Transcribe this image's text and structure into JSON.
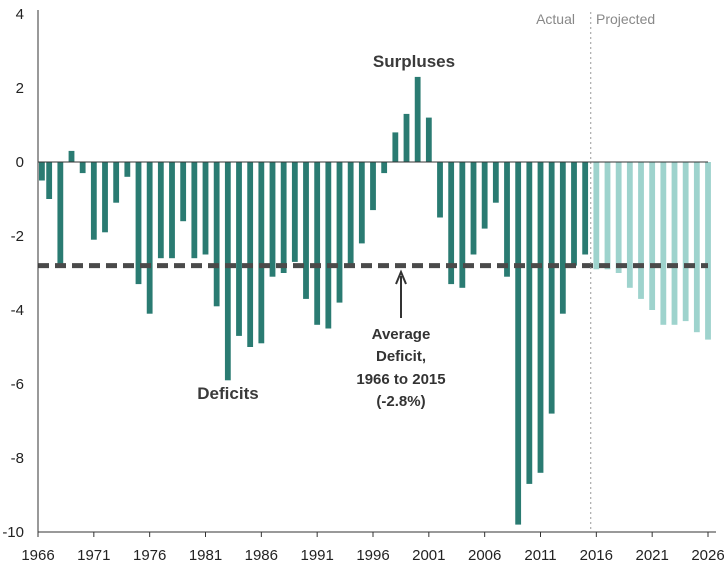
{
  "chart_data": {
    "type": "bar",
    "x": [
      1966,
      1967,
      1968,
      1969,
      1970,
      1971,
      1972,
      1973,
      1974,
      1975,
      1976,
      1977,
      1978,
      1979,
      1980,
      1981,
      1982,
      1983,
      1984,
      1985,
      1986,
      1987,
      1988,
      1989,
      1990,
      1991,
      1992,
      1993,
      1994,
      1995,
      1996,
      1997,
      1998,
      1999,
      2000,
      2001,
      2002,
      2003,
      2004,
      2005,
      2006,
      2007,
      2008,
      2009,
      2010,
      2011,
      2012,
      2013,
      2014,
      2015,
      2016,
      2017,
      2018,
      2019,
      2020,
      2021,
      2022,
      2023,
      2024,
      2025,
      2026
    ],
    "values": [
      -0.5,
      -1.0,
      -2.8,
      0.3,
      -0.3,
      -2.1,
      -1.9,
      -1.1,
      -0.4,
      -3.3,
      -4.1,
      -2.6,
      -2.6,
      -1.6,
      -2.6,
      -2.5,
      -3.9,
      -5.9,
      -4.7,
      -5.0,
      -4.9,
      -3.1,
      -3.0,
      -2.7,
      -3.7,
      -4.4,
      -4.5,
      -3.8,
      -2.8,
      -2.2,
      -1.3,
      -0.3,
      0.8,
      1.3,
      2.3,
      1.2,
      -1.5,
      -3.3,
      -3.4,
      -2.5,
      -1.8,
      -1.1,
      -3.1,
      -9.8,
      -8.7,
      -8.4,
      -6.8,
      -4.1,
      -2.8,
      -2.5,
      -2.9,
      -2.9,
      -3.0,
      -3.4,
      -3.7,
      -4.0,
      -4.4,
      -4.4,
      -4.3,
      -4.6,
      -4.8
    ],
    "projected_from": 2016,
    "xticks": [
      "1966",
      "1971",
      "1976",
      "1981",
      "1986",
      "1991",
      "1996",
      "2001",
      "2006",
      "2011",
      "2016",
      "2021",
      "2026"
    ],
    "yticks": [
      "4",
      "2",
      "0",
      "-2",
      "-4",
      "-6",
      "-8",
      "-10"
    ],
    "ylim": [
      -10,
      4
    ],
    "average": -2.8,
    "annotations": {
      "surpluses": "Surpluses",
      "deficits": "Deficits",
      "average_lines": [
        "Average",
        "Deficit,",
        "1966 to 2015",
        "(-2.8%)"
      ]
    },
    "regions": {
      "actual": "Actual",
      "projected": "Projected"
    },
    "colors": {
      "actual": "#2a7b72",
      "projected": "#9ed3cd",
      "average_line": "#4a4a4a",
      "divider": "#999999",
      "axis": "#333333"
    }
  }
}
